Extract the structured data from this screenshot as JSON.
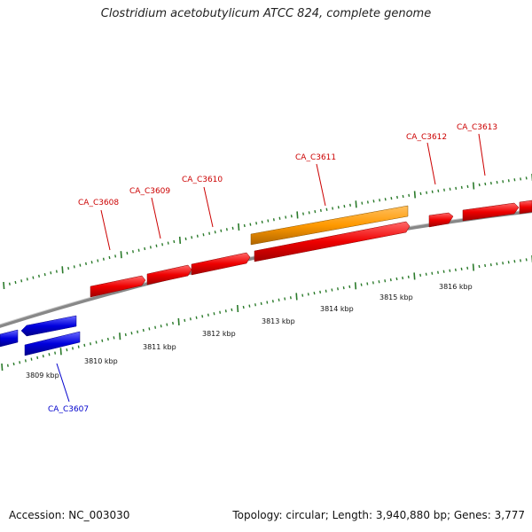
{
  "title": "Clostridium acetobutylicum ATCC 824, complete genome",
  "footer": {
    "accession": "Accession: NC_003030",
    "summary": "Topology: circular; Length: 3,940,880 bp; Genes: 3,777"
  },
  "colors": {
    "backbone": "#888888",
    "forward_gene": "#ee0000",
    "reverse_gene": "#0000dd",
    "rna_gene": "#ff9900",
    "tick": "#2a7a2a",
    "forward_label": "#cc0000",
    "reverse_label": "#0000cc"
  },
  "scale_labels": [
    "3809 kbp",
    "3810 kbp",
    "3811 kbp",
    "3812 kbp",
    "3813 kbp",
    "3814 kbp",
    "3815 kbp",
    "3816 kbp"
  ],
  "gene_labels": {
    "forward": [
      "CA_C3608",
      "CA_C3609",
      "CA_C3610",
      "CA_C3611",
      "CA_C3612",
      "CA_C3613"
    ],
    "reverse": [
      "CA_C3607"
    ]
  }
}
